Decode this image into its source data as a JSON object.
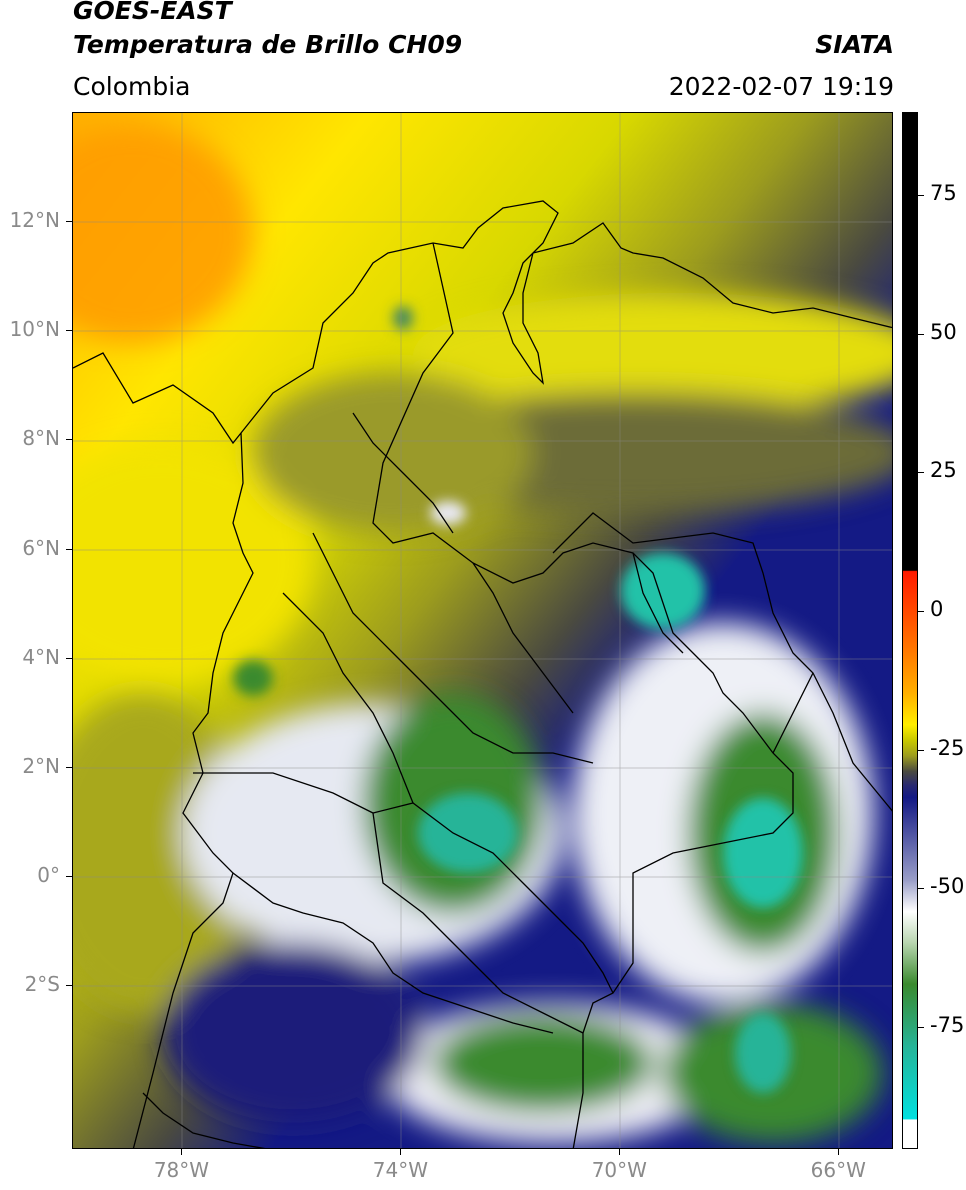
{
  "header": {
    "title_line1": "GOES-EAST",
    "title_line2": "Temperatura de Brillo CH09",
    "region": "Colombia",
    "organization": "SIATA",
    "timestamp": "2022-02-07 19:19"
  },
  "map": {
    "lon_range": [
      -80,
      -65
    ],
    "lat_range": [
      -5,
      14
    ],
    "lat_ticks": [
      {
        "value": 12,
        "label": "12°N"
      },
      {
        "value": 10,
        "label": "10°N"
      },
      {
        "value": 8,
        "label": "8°N"
      },
      {
        "value": 6,
        "label": "6°N"
      },
      {
        "value": 4,
        "label": "4°N"
      },
      {
        "value": 2,
        "label": "2°N"
      },
      {
        "value": 0,
        "label": "0°"
      },
      {
        "value": -2,
        "label": "2°S"
      }
    ],
    "lon_ticks": [
      {
        "value": -78,
        "label": "78°W"
      },
      {
        "value": -74,
        "label": "74°W"
      },
      {
        "value": -70,
        "label": "70°W"
      },
      {
        "value": -66,
        "label": "66°W"
      }
    ]
  },
  "colorbar": {
    "ticks": [
      {
        "value": 75,
        "label": "75"
      },
      {
        "value": 50,
        "label": "50"
      },
      {
        "value": 25,
        "label": "25"
      },
      {
        "value": 0,
        "label": "0"
      },
      {
        "value": -25,
        "label": "-25"
      },
      {
        "value": -50,
        "label": "-50"
      },
      {
        "value": -75,
        "label": "-75"
      }
    ],
    "colors": {
      "black": "#000000",
      "red": "#ff1a00",
      "orange": "#ff9900",
      "yellow": "#ffee00",
      "olive": "#9c9c1e",
      "gray": "#4a4a40",
      "navy": "#141a85",
      "white": "#ffffff",
      "green": "#3a8a2e",
      "teal": "#20c2a8",
      "cyan": "#00e0e0"
    }
  }
}
